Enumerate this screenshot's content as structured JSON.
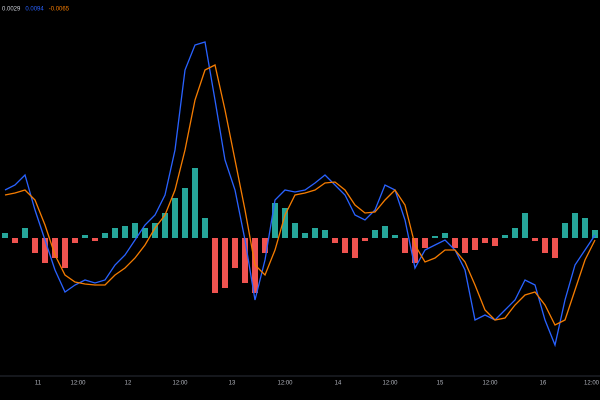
{
  "chart_data": {
    "type": "macd",
    "legend": [
      {
        "text": "0.0029",
        "color": "#d1d4dc"
      },
      {
        "text": "0.0094",
        "color": "#2962ff"
      },
      {
        "text": "-0.0065",
        "color": "#f57c00"
      }
    ],
    "background": "#000000",
    "ylim": [
      -137,
      238
    ],
    "xlim": [
      -0.5,
      59.5
    ],
    "xticks": [
      {
        "value": 3.3,
        "label": "11"
      },
      {
        "value": 7.3,
        "label": "12:00"
      },
      {
        "value": 12.3,
        "label": "12"
      },
      {
        "value": 17.5,
        "label": "12:00"
      },
      {
        "value": 22.7,
        "label": "13"
      },
      {
        "value": 28,
        "label": "12:00"
      },
      {
        "value": 33.3,
        "label": "14"
      },
      {
        "value": 38.5,
        "label": "12:00"
      },
      {
        "value": 43.5,
        "label": "15"
      },
      {
        "value": 48.5,
        "label": "12:00"
      },
      {
        "value": 53.8,
        "label": "16"
      },
      {
        "value": 59,
        "label": "12:00"
      }
    ],
    "histogram": {
      "positive_color": "#26a69a",
      "negative_color": "#ef5350",
      "values": [
        5,
        -5,
        10,
        -15,
        -25,
        -20,
        -30,
        -5,
        3,
        -3,
        5,
        10,
        12,
        15,
        10,
        15,
        25,
        40,
        50,
        70,
        20,
        -55,
        -50,
        -30,
        -45,
        -55,
        -15,
        35,
        30,
        15,
        5,
        10,
        8,
        -5,
        -15,
        -20,
        -3,
        8,
        12,
        3,
        -15,
        -25,
        -10,
        2,
        5,
        -10,
        -15,
        -12,
        -5,
        -8,
        3,
        10,
        25,
        -3,
        -15,
        -20,
        15,
        25,
        20,
        8
      ]
    },
    "series": [
      {
        "color": "#2962ff",
        "values": [
          48,
          53,
          63,
          28,
          -2,
          -32,
          -54,
          -47,
          -42,
          -45,
          -42,
          -27,
          -17,
          -2,
          13,
          23,
          43,
          88,
          168,
          193,
          196,
          138,
          78,
          48,
          -2,
          -62,
          -22,
          38,
          48,
          46,
          48,
          55,
          63,
          53,
          43,
          23,
          18,
          28,
          53,
          48,
          18,
          -30,
          -12,
          -7,
          -2,
          -12,
          -32,
          -82,
          -77,
          -82,
          -72,
          -62,
          -42,
          -47,
          -82,
          -107,
          -62,
          -27,
          -12,
          3
        ]
      },
      {
        "color": "#f57c00",
        "values": [
          43,
          45,
          48,
          38,
          13,
          -17,
          -37,
          -44,
          -46,
          -47,
          -47,
          -37,
          -30,
          -20,
          -7,
          10,
          23,
          48,
          88,
          138,
          168,
          173,
          128,
          78,
          28,
          -27,
          -37,
          -12,
          23,
          43,
          45,
          48,
          55,
          56,
          48,
          33,
          25,
          26,
          38,
          48,
          33,
          -7,
          -24,
          -20,
          -12,
          -12,
          -24,
          -47,
          -72,
          -82,
          -80,
          -67,
          -57,
          -54,
          -67,
          -87,
          -82,
          -52,
          -22,
          -2
        ]
      }
    ]
  }
}
